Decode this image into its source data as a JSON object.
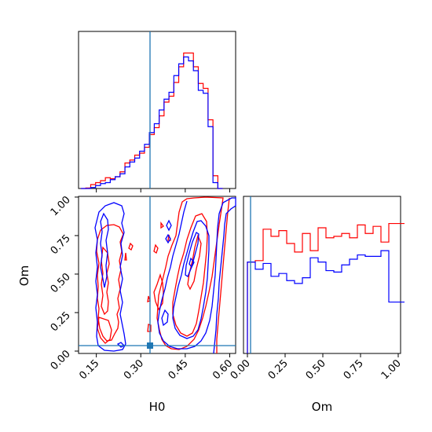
{
  "chart_data": {
    "type": "corner",
    "parameters": [
      "H0",
      "Om"
    ],
    "truth": {
      "H0": 0.35,
      "Om": 0.025
    },
    "colors": {
      "red_run": "#ff0000",
      "blue_run": "#0000ff",
      "truth": "#1f77b4"
    },
    "panels": [
      {
        "id": "H0-marginal",
        "type": "histogram",
        "x_range": [
          0.09,
          0.62
        ],
        "x_bins_start": 0.098,
        "bin_width": 0.0165,
        "series": [
          {
            "name": "",
            "color": "red",
            "counts": [
              0,
              0.5,
              4,
              6,
              8,
              11,
              10,
              12,
              17,
              26,
              29,
              34,
              36,
              42,
              55,
              62,
              74,
              88,
              94,
              108,
              124,
              138,
              138,
              124,
              107,
              102,
              70,
              13,
              0
            ]
          },
          {
            "name": "",
            "color": "blue",
            "counts": [
              0,
              0,
              1,
              3,
              5,
              6,
              9,
              12,
              15,
              22,
              27,
              31,
              38,
              45,
              57,
              66,
              80,
              91,
              98,
              115,
              127,
              134,
              130,
              120,
              100,
              97,
              63,
              6,
              0
            ]
          }
        ]
      },
      {
        "id": "Om-marginal",
        "type": "histogram",
        "x_range": [
          0.0,
          1.0
        ],
        "x_bins_start": 0.025,
        "bin_width": 0.05,
        "series": [
          {
            "name": "",
            "color": "red",
            "counts": [
              64,
              65,
              87,
              82,
              86,
              77,
              71,
              84,
              72,
              88,
              81,
              82,
              84,
              81,
              90,
              84,
              89,
              78,
              91,
              91
            ]
          },
          {
            "name": "",
            "color": "blue",
            "counts": [
              64,
              59,
              63,
              54,
              56,
              51,
              49,
              53,
              67,
              64,
              58,
              57,
              62,
              66,
              69,
              68,
              68,
              72,
              36,
              36
            ]
          }
        ]
      },
      {
        "id": "H0-Om-2D",
        "type": "contour",
        "x_range": [
          0.1,
          0.62
        ],
        "y_range": [
          0.0,
          1.02
        ],
        "series": [
          {
            "name": "",
            "color": "red",
            "contour_levels": 3
          },
          {
            "name": "",
            "color": "blue",
            "contour_levels": 3
          }
        ]
      }
    ],
    "axes": {
      "H0": {
        "label": "H0",
        "ticks": [
          "0.15",
          "0.30",
          "0.45",
          "0.60"
        ],
        "tick_values": [
          0.15,
          0.3,
          0.45,
          0.6
        ]
      },
      "Om_y": {
        "label": "Om",
        "ticks": [
          "0.00",
          "0.25",
          "0.50",
          "0.75",
          "1.00"
        ],
        "tick_values": [
          0.0,
          0.25,
          0.5,
          0.75,
          1.0
        ]
      },
      "Om_x": {
        "label": "Om",
        "ticks": [
          "0.00",
          "0.25",
          "0.50",
          "0.75",
          "1.00"
        ],
        "tick_values": [
          0.0,
          0.25,
          0.5,
          0.75,
          1.0
        ]
      }
    }
  }
}
